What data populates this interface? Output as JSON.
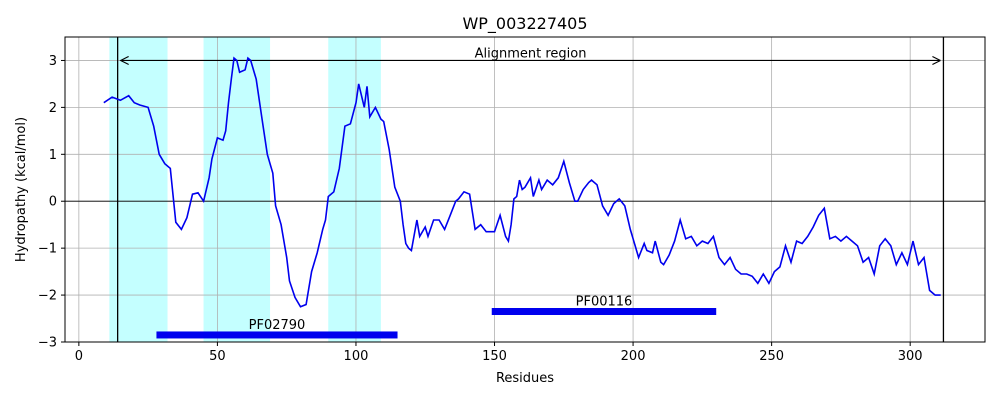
{
  "chart_data": {
    "type": "line",
    "title": "WP_003227405",
    "xlabel": "Residues",
    "ylabel": "Hydropathy (kcal/mol)",
    "xlim": [
      -5,
      327
    ],
    "ylim": [
      -3,
      3.5
    ],
    "xticks": [
      0,
      50,
      100,
      150,
      200,
      250,
      300
    ],
    "yticks": [
      -3,
      -2,
      -1,
      0,
      1,
      2,
      3
    ],
    "grid": true,
    "zero_line": true,
    "line_color": "#0000ee",
    "highlight_color": "#c4ffff",
    "highlight_regions": [
      [
        11,
        32
      ],
      [
        45,
        69
      ],
      [
        90,
        109
      ]
    ],
    "alignment": {
      "label": "Alignment region",
      "start": 14,
      "end": 312,
      "y": 3.0
    },
    "domains": [
      {
        "name": "PF02790",
        "start": 28,
        "end": 115,
        "y": -2.85,
        "color": "#0000ee"
      },
      {
        "name": "PF00116",
        "start": 149,
        "end": 230,
        "y": -2.35,
        "color": "#0000ee"
      }
    ],
    "series": [
      {
        "points": [
          [
            9,
            2.1
          ],
          [
            12,
            2.22
          ],
          [
            15,
            2.15
          ],
          [
            18,
            2.25
          ],
          [
            20,
            2.1
          ],
          [
            22,
            2.05
          ],
          [
            25,
            2.0
          ],
          [
            27,
            1.6
          ],
          [
            29,
            1.0
          ],
          [
            31,
            0.8
          ],
          [
            33,
            0.7
          ],
          [
            35,
            -0.45
          ],
          [
            37,
            -0.6
          ],
          [
            39,
            -0.35
          ],
          [
            41,
            0.15
          ],
          [
            43,
            0.18
          ],
          [
            45,
            0.0
          ],
          [
            47,
            0.5
          ],
          [
            48,
            0.9
          ],
          [
            50,
            1.35
          ],
          [
            52,
            1.3
          ],
          [
            53,
            1.5
          ],
          [
            54,
            2.1
          ],
          [
            55,
            2.6
          ],
          [
            56,
            3.05
          ],
          [
            57,
            3.0
          ],
          [
            58,
            2.75
          ],
          [
            60,
            2.8
          ],
          [
            61,
            3.05
          ],
          [
            62,
            3.0
          ],
          [
            64,
            2.6
          ],
          [
            66,
            1.8
          ],
          [
            68,
            1.0
          ],
          [
            70,
            0.6
          ],
          [
            71,
            -0.1
          ],
          [
            73,
            -0.5
          ],
          [
            75,
            -1.2
          ],
          [
            76,
            -1.7
          ],
          [
            78,
            -2.05
          ],
          [
            80,
            -2.25
          ],
          [
            82,
            -2.2
          ],
          [
            84,
            -1.5
          ],
          [
            86,
            -1.1
          ],
          [
            88,
            -0.6
          ],
          [
            89,
            -0.4
          ],
          [
            90,
            0.1
          ],
          [
            92,
            0.2
          ],
          [
            94,
            0.7
          ],
          [
            96,
            1.6
          ],
          [
            98,
            1.65
          ],
          [
            100,
            2.1
          ],
          [
            101,
            2.5
          ],
          [
            103,
            2.0
          ],
          [
            104,
            2.45
          ],
          [
            105,
            1.8
          ],
          [
            107,
            2.0
          ],
          [
            109,
            1.75
          ],
          [
            110,
            1.7
          ],
          [
            112,
            1.1
          ],
          [
            114,
            0.3
          ],
          [
            116,
            0.0
          ],
          [
            117,
            -0.5
          ],
          [
            118,
            -0.9
          ],
          [
            119,
            -1.0
          ],
          [
            120,
            -1.05
          ],
          [
            122,
            -0.4
          ],
          [
            123,
            -0.75
          ],
          [
            125,
            -0.55
          ],
          [
            126,
            -0.75
          ],
          [
            128,
            -0.4
          ],
          [
            130,
            -0.4
          ],
          [
            132,
            -0.6
          ],
          [
            134,
            -0.3
          ],
          [
            136,
            0.0
          ],
          [
            137,
            0.05
          ],
          [
            139,
            0.2
          ],
          [
            141,
            0.15
          ],
          [
            143,
            -0.6
          ],
          [
            145,
            -0.5
          ],
          [
            147,
            -0.65
          ],
          [
            150,
            -0.65
          ],
          [
            152,
            -0.3
          ],
          [
            154,
            -0.75
          ],
          [
            155,
            -0.85
          ],
          [
            156,
            -0.5
          ],
          [
            157,
            0.05
          ],
          [
            158,
            0.1
          ],
          [
            159,
            0.45
          ],
          [
            160,
            0.25
          ],
          [
            161,
            0.3
          ],
          [
            163,
            0.5
          ],
          [
            164,
            0.1
          ],
          [
            166,
            0.45
          ],
          [
            167,
            0.25
          ],
          [
            169,
            0.45
          ],
          [
            171,
            0.35
          ],
          [
            173,
            0.5
          ],
          [
            175,
            0.85
          ],
          [
            177,
            0.4
          ],
          [
            179,
            0.0
          ],
          [
            180,
            0.0
          ],
          [
            182,
            0.25
          ],
          [
            184,
            0.4
          ],
          [
            185,
            0.45
          ],
          [
            187,
            0.35
          ],
          [
            189,
            -0.1
          ],
          [
            191,
            -0.3
          ],
          [
            193,
            -0.05
          ],
          [
            195,
            0.05
          ],
          [
            197,
            -0.1
          ],
          [
            199,
            -0.6
          ],
          [
            200,
            -0.8
          ],
          [
            202,
            -1.2
          ],
          [
            204,
            -0.9
          ],
          [
            205,
            -1.05
          ],
          [
            207,
            -1.1
          ],
          [
            208,
            -0.85
          ],
          [
            210,
            -1.3
          ],
          [
            211,
            -1.35
          ],
          [
            213,
            -1.15
          ],
          [
            215,
            -0.85
          ],
          [
            217,
            -0.4
          ],
          [
            219,
            -0.8
          ],
          [
            221,
            -0.75
          ],
          [
            223,
            -0.95
          ],
          [
            225,
            -0.85
          ],
          [
            227,
            -0.9
          ],
          [
            229,
            -0.75
          ],
          [
            231,
            -1.2
          ],
          [
            233,
            -1.35
          ],
          [
            235,
            -1.2
          ],
          [
            237,
            -1.45
          ],
          [
            239,
            -1.55
          ],
          [
            241,
            -1.55
          ],
          [
            243,
            -1.6
          ],
          [
            245,
            -1.75
          ],
          [
            247,
            -1.55
          ],
          [
            249,
            -1.75
          ],
          [
            251,
            -1.5
          ],
          [
            253,
            -1.4
          ],
          [
            255,
            -0.95
          ],
          [
            257,
            -1.3
          ],
          [
            259,
            -0.85
          ],
          [
            261,
            -0.9
          ],
          [
            263,
            -0.75
          ],
          [
            265,
            -0.55
          ],
          [
            267,
            -0.3
          ],
          [
            269,
            -0.15
          ],
          [
            271,
            -0.8
          ],
          [
            273,
            -0.75
          ],
          [
            275,
            -0.85
          ],
          [
            277,
            -0.75
          ],
          [
            279,
            -0.85
          ],
          [
            281,
            -0.95
          ],
          [
            283,
            -1.3
          ],
          [
            285,
            -1.2
          ],
          [
            287,
            -1.55
          ],
          [
            289,
            -0.95
          ],
          [
            291,
            -0.8
          ],
          [
            293,
            -0.95
          ],
          [
            295,
            -1.35
          ],
          [
            297,
            -1.1
          ],
          [
            299,
            -1.35
          ],
          [
            301,
            -0.85
          ],
          [
            303,
            -1.35
          ],
          [
            305,
            -1.2
          ],
          [
            307,
            -1.9
          ],
          [
            309,
            -2.0
          ],
          [
            311,
            -2.0
          ]
        ]
      }
    ]
  }
}
